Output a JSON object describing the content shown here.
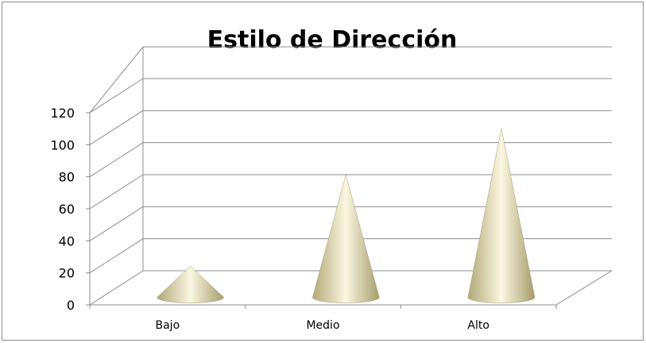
{
  "chart_data": {
    "type": "bar",
    "subtype": "3d-cone",
    "title": "Estilo de Dirección",
    "xlabel": "",
    "ylabel": "",
    "categories": [
      "Bajo",
      "Medio",
      "Alto"
    ],
    "values": [
      17,
      74,
      103
    ],
    "ylim": [
      0,
      120
    ],
    "yticks": [
      0,
      20,
      40,
      60,
      80,
      100,
      120
    ],
    "grid": true,
    "legend": "none",
    "colors": {
      "cone_edge": "#b2a878",
      "cone_mid": "#e2d9b3",
      "cone_highlight": "#fbf7e1",
      "grid": "#8c8c8c",
      "frame": "#8c8c8c"
    }
  }
}
